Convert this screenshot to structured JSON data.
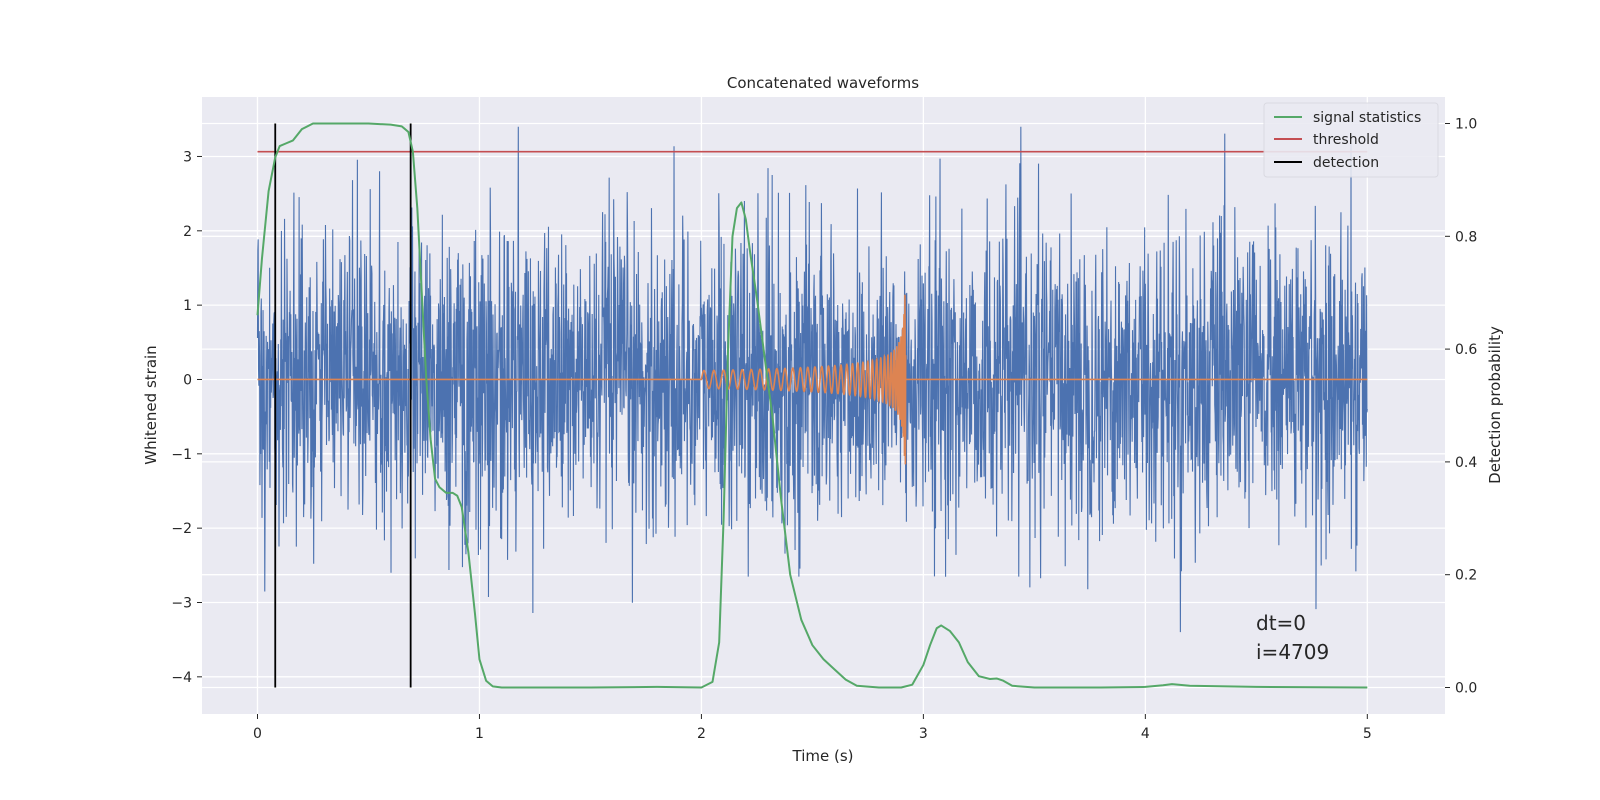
{
  "chart_data": {
    "type": "line",
    "title": "Concatenated waveforms",
    "xlabel": "Time (s)",
    "ylabel": "Whitened strain",
    "ylabel_right": "Detection probability",
    "xlim": [
      -0.25,
      5.35
    ],
    "ylim": [
      -4.5,
      3.8
    ],
    "ylim_right": [
      -0.047,
      1.047
    ],
    "x_ticks": [
      0,
      1,
      2,
      3,
      4,
      5
    ],
    "x_tick_labels": [
      "0",
      "1",
      "2",
      "3",
      "4",
      "5"
    ],
    "y_ticks": [
      -4,
      -3,
      -2,
      -1,
      0,
      1,
      2,
      3
    ],
    "y_tick_labels": [
      "−4",
      "−3",
      "−2",
      "−1",
      "0",
      "1",
      "2",
      "3"
    ],
    "y_right_ticks": [
      0.0,
      0.2,
      0.4,
      0.6,
      0.8,
      1.0
    ],
    "y_right_tick_labels": [
      "0.0",
      "0.2",
      "0.4",
      "0.6",
      "0.8",
      "1.0"
    ],
    "grid": true,
    "legend_position": "top-right",
    "legend": [
      "signal statistics",
      "threshold",
      "detection"
    ],
    "annotations": [
      "dt=0",
      "i=4709"
    ],
    "colors": {
      "background": "#eaeaf2",
      "grid": "#ffffff",
      "strain": "#4c72b0",
      "injection": "#dd8452",
      "statistic": "#55a868",
      "threshold": "#c44e52",
      "detection": "#000000"
    },
    "series": [
      {
        "name": "strain",
        "axis": "left",
        "x_range": [
          0,
          5
        ],
        "approx_amplitude_range": [
          -3.8,
          3.4
        ]
      },
      {
        "name": "injection",
        "axis": "left",
        "description_values": {
          "start": 2.0,
          "end": 2.92,
          "peak": 1.4,
          "trough": -1.25
        },
        "x": [
          0,
          2.0,
          2.92,
          5.0
        ],
        "y": [
          0,
          0,
          0,
          0
        ]
      },
      {
        "name": "signal statistics",
        "axis": "right",
        "x": [
          0.0,
          0.02,
          0.05,
          0.08,
          0.1,
          0.13,
          0.16,
          0.2,
          0.25,
          0.3,
          0.4,
          0.5,
          0.6,
          0.65,
          0.68,
          0.7,
          0.72,
          0.74,
          0.76,
          0.78,
          0.8,
          0.82,
          0.85,
          0.88,
          0.9,
          0.92,
          0.95,
          0.98,
          1.0,
          1.03,
          1.06,
          1.1,
          1.2,
          1.5,
          1.8,
          2.0,
          2.05,
          2.08,
          2.1,
          2.12,
          2.14,
          2.16,
          2.18,
          2.2,
          2.22,
          2.25,
          2.28,
          2.32,
          2.36,
          2.4,
          2.45,
          2.5,
          2.55,
          2.6,
          2.65,
          2.7,
          2.8,
          2.9,
          2.95,
          3.0,
          3.03,
          3.06,
          3.08,
          3.12,
          3.16,
          3.2,
          3.25,
          3.3,
          3.33,
          3.36,
          3.4,
          3.5,
          3.8,
          4.0,
          4.08,
          4.12,
          4.2,
          4.5,
          5.0
        ],
        "y": [
          0.66,
          0.76,
          0.88,
          0.94,
          0.96,
          0.965,
          0.97,
          0.99,
          1.0,
          1.0,
          1.0,
          1.0,
          0.998,
          0.995,
          0.985,
          0.95,
          0.85,
          0.7,
          0.55,
          0.44,
          0.37,
          0.355,
          0.345,
          0.345,
          0.34,
          0.32,
          0.24,
          0.13,
          0.05,
          0.012,
          0.002,
          0.0,
          0.0,
          0.0,
          0.001,
          0.0,
          0.01,
          0.08,
          0.3,
          0.6,
          0.8,
          0.85,
          0.86,
          0.83,
          0.77,
          0.69,
          0.6,
          0.48,
          0.33,
          0.2,
          0.12,
          0.075,
          0.05,
          0.032,
          0.014,
          0.003,
          0.0,
          0.0,
          0.005,
          0.04,
          0.075,
          0.105,
          0.11,
          0.1,
          0.08,
          0.045,
          0.02,
          0.015,
          0.016,
          0.012,
          0.003,
          0.0,
          0.0,
          0.001,
          0.004,
          0.006,
          0.003,
          0.001,
          0.0
        ]
      },
      {
        "name": "threshold",
        "axis": "right",
        "x": [
          0,
          5
        ],
        "y": [
          0.95,
          0.95
        ]
      },
      {
        "name": "detection",
        "axis": "right",
        "x": [
          0.08,
          0.69
        ],
        "y_range": [
          0.0,
          1.0
        ]
      }
    ]
  }
}
